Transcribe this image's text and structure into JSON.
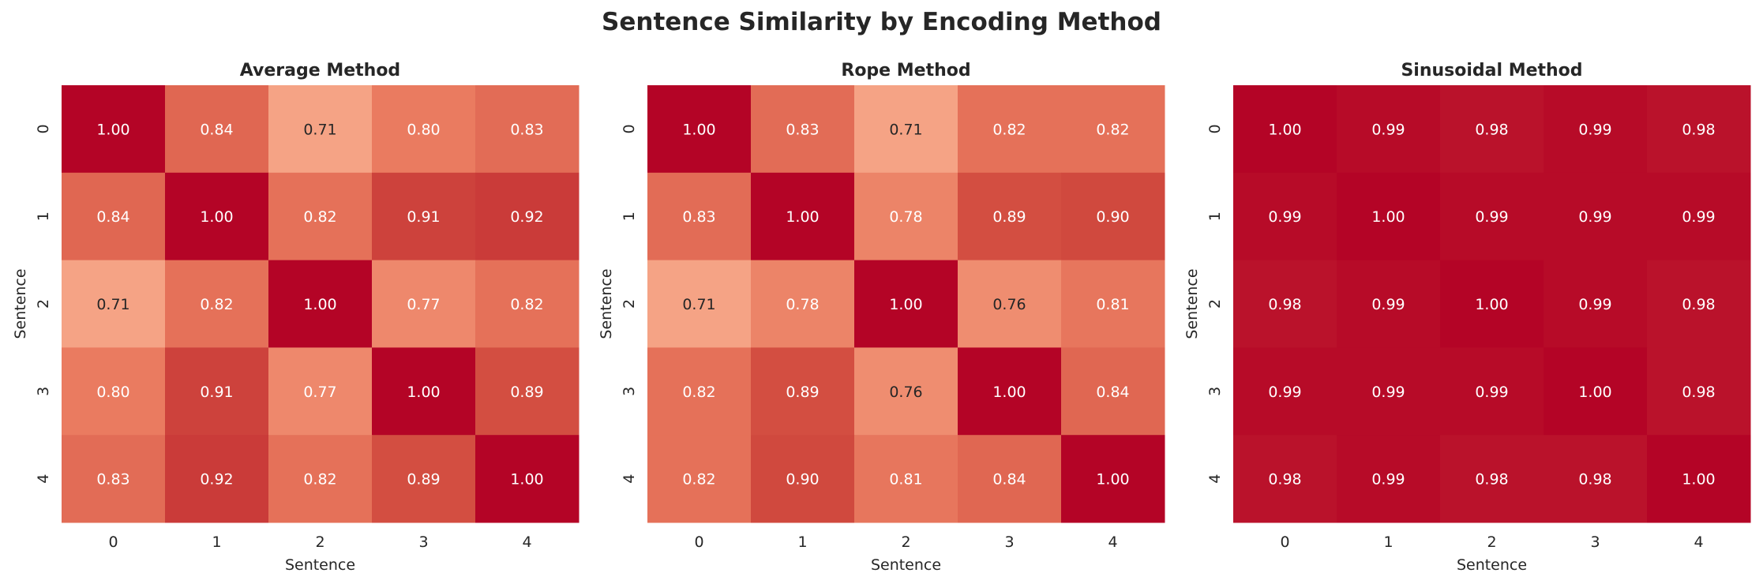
{
  "title": "Sentence Similarity by Encoding Method",
  "chart_data": [
    {
      "type": "heatmap",
      "title": "Average Method",
      "xlabel": "Sentence",
      "ylabel": "Sentence",
      "x_ticks": [
        "0",
        "1",
        "2",
        "3",
        "4"
      ],
      "y_ticks": [
        "0",
        "1",
        "2",
        "3",
        "4"
      ],
      "colormap": "coolwarm",
      "value_range": [
        0,
        1
      ],
      "values": [
        [
          1.0,
          0.84,
          0.71,
          0.8,
          0.83
        ],
        [
          0.84,
          1.0,
          0.82,
          0.91,
          0.92
        ],
        [
          0.71,
          0.82,
          1.0,
          0.77,
          0.82
        ],
        [
          0.8,
          0.91,
          0.77,
          1.0,
          0.89
        ],
        [
          0.83,
          0.92,
          0.82,
          0.89,
          1.0
        ]
      ]
    },
    {
      "type": "heatmap",
      "title": "Rope Method",
      "xlabel": "Sentence",
      "ylabel": "Sentence",
      "x_ticks": [
        "0",
        "1",
        "2",
        "3",
        "4"
      ],
      "y_ticks": [
        "0",
        "1",
        "2",
        "3",
        "4"
      ],
      "colormap": "coolwarm",
      "value_range": [
        0,
        1
      ],
      "values": [
        [
          1.0,
          0.83,
          0.71,
          0.82,
          0.82
        ],
        [
          0.83,
          1.0,
          0.78,
          0.89,
          0.9
        ],
        [
          0.71,
          0.78,
          1.0,
          0.76,
          0.81
        ],
        [
          0.82,
          0.89,
          0.76,
          1.0,
          0.84
        ],
        [
          0.82,
          0.9,
          0.81,
          0.84,
          1.0
        ]
      ]
    },
    {
      "type": "heatmap",
      "title": "Sinusoidal Method",
      "xlabel": "Sentence",
      "ylabel": "Sentence",
      "x_ticks": [
        "0",
        "1",
        "2",
        "3",
        "4"
      ],
      "y_ticks": [
        "0",
        "1",
        "2",
        "3",
        "4"
      ],
      "colormap": "coolwarm",
      "value_range": [
        0,
        1
      ],
      "values": [
        [
          1.0,
          0.99,
          0.98,
          0.99,
          0.98
        ],
        [
          0.99,
          1.0,
          0.99,
          0.99,
          0.99
        ],
        [
          0.98,
          0.99,
          1.0,
          0.99,
          0.98
        ],
        [
          0.99,
          0.99,
          0.99,
          1.0,
          0.98
        ],
        [
          0.98,
          0.99,
          0.98,
          0.98,
          1.0
        ]
      ]
    }
  ]
}
